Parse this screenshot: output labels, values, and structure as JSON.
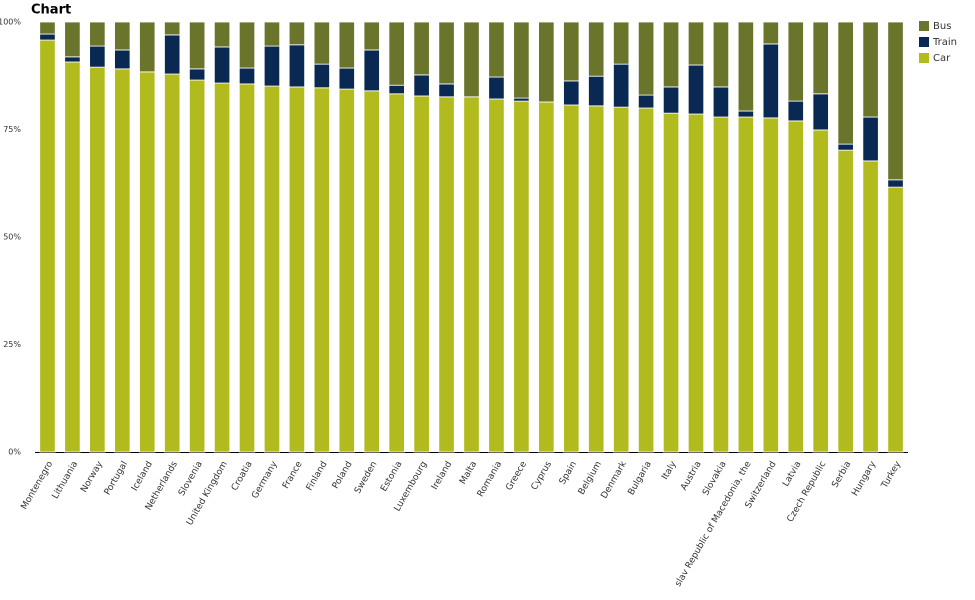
{
  "chart_data": {
    "type": "stacked_bar_percent",
    "title": "Chart",
    "categories": [
      "Montenegro",
      "Lithuania",
      "Norway",
      "Portugal",
      "Iceland",
      "Netherlands",
      "Slovenia",
      "United Kingdom",
      "Croatia",
      "Germany",
      "France",
      "Finland",
      "Poland",
      "Sweden",
      "Estonia",
      "Luxembourg",
      "Ireland",
      "Malta",
      "Romania",
      "Greece",
      "Cyprus",
      "Spain",
      "Belgium",
      "Denmark",
      "Bulgaria",
      "Italy",
      "Austria",
      "Slovakia",
      "slav Republic of Macedonia, the",
      "Switzerland",
      "Latvia",
      "Czech Republic",
      "Serbia",
      "Hungary",
      "Turkey"
    ],
    "series": [
      {
        "name": "Car",
        "color": "#b2bb1e",
        "values": [
          95.8,
          90.7,
          89.5,
          89.1,
          88.4,
          87.9,
          86.5,
          85.8,
          85.6,
          85.1,
          84.9,
          84.7,
          84.4,
          84.0,
          83.3,
          82.8,
          82.6,
          82.6,
          82.1,
          81.6,
          81.4,
          80.7,
          80.5,
          80.2,
          80.0,
          78.8,
          78.6,
          77.9,
          77.9,
          77.7,
          77.0,
          74.9,
          70.2,
          67.7,
          61.6
        ]
      },
      {
        "name": "Train",
        "color": "#0a2952",
        "values": [
          1.4,
          1.2,
          4.9,
          4.4,
          0,
          9.1,
          2.6,
          8.4,
          3.7,
          9.3,
          9.8,
          5.5,
          4.9,
          9.5,
          2.0,
          4.9,
          3.0,
          0,
          5.1,
          0.7,
          0,
          5.6,
          6.9,
          10.0,
          3.0,
          6.1,
          11.4,
          7.0,
          1.4,
          17.2,
          4.6,
          8.4,
          1.4,
          10.2,
          1.7
        ]
      },
      {
        "name": "Bus",
        "color": "#6b742b",
        "values": [
          2.8,
          8.1,
          5.6,
          6.5,
          11.6,
          3.0,
          10.9,
          5.8,
          10.7,
          5.6,
          5.3,
          9.8,
          10.7,
          6.5,
          14.7,
          12.3,
          14.4,
          17.4,
          12.8,
          17.7,
          18.6,
          13.7,
          12.6,
          9.8,
          17.0,
          15.1,
          10.0,
          15.1,
          20.7,
          5.1,
          18.4,
          16.7,
          28.4,
          22.1,
          36.7
        ]
      }
    ],
    "ylim": [
      0,
      100
    ],
    "yticks": [
      {
        "value": 0,
        "label": "0%"
      },
      {
        "value": 25,
        "label": "25%"
      },
      {
        "value": 50,
        "label": "50%"
      },
      {
        "value": 75,
        "label": "75%"
      },
      {
        "value": 100,
        "label": "100%"
      }
    ],
    "legend": "top-right"
  }
}
